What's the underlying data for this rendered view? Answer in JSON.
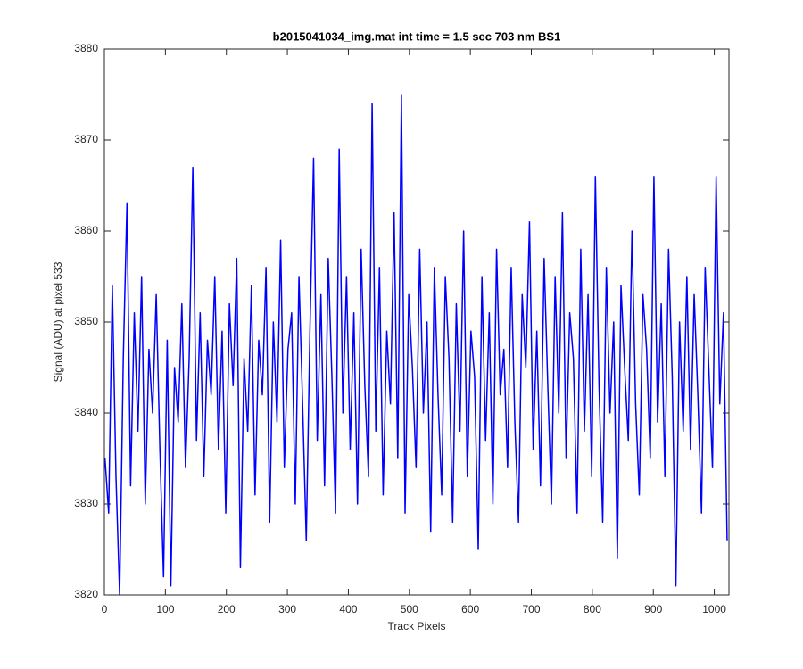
{
  "chart_data": {
    "type": "line",
    "title": "b2015041034_img.mat int time = 1.5 sec  703 nm BS1",
    "x_label": "Track Pixels",
    "y_label": "Signal (ADU) at pixel 533",
    "x": [
      1,
      7,
      13,
      19,
      25,
      31,
      37,
      43,
      49,
      55,
      61,
      67,
      73,
      79,
      85,
      91,
      97,
      103,
      109,
      115,
      121,
      127,
      133,
      139,
      145,
      151,
      157,
      163,
      169,
      175,
      181,
      187,
      193,
      199,
      205,
      211,
      217,
      223,
      229,
      235,
      241,
      247,
      253,
      259,
      265,
      271,
      277,
      283,
      289,
      295,
      301,
      307,
      313,
      319,
      325,
      331,
      337,
      343,
      349,
      355,
      361,
      367,
      373,
      379,
      385,
      391,
      397,
      403,
      409,
      415,
      421,
      427,
      433,
      439,
      445,
      451,
      457,
      463,
      469,
      475,
      481,
      487,
      493,
      499,
      505,
      511,
      517,
      523,
      529,
      535,
      541,
      547,
      553,
      559,
      565,
      571,
      577,
      583,
      589,
      595,
      601,
      607,
      613,
      619,
      625,
      631,
      637,
      643,
      649,
      655,
      661,
      667,
      673,
      679,
      685,
      691,
      697,
      703,
      709,
      715,
      721,
      727,
      733,
      739,
      745,
      751,
      757,
      763,
      769,
      775,
      781,
      787,
      793,
      799,
      805,
      811,
      817,
      823,
      829,
      835,
      841,
      847,
      853,
      859,
      865,
      871,
      877,
      883,
      889,
      895,
      901,
      907,
      913,
      919,
      925,
      931,
      937,
      943,
      949,
      955,
      961,
      967,
      973,
      979,
      985,
      991,
      997,
      1003,
      1009,
      1015,
      1021
    ],
    "series": [
      {
        "color": "#0000ff",
        "values": [
          3835,
          3829,
          3854,
          3833,
          3820,
          3846,
          3863,
          3832,
          3851,
          3838,
          3855,
          3830,
          3847,
          3840,
          3853,
          3836,
          3822,
          3848,
          3821,
          3845,
          3839,
          3852,
          3834,
          3846,
          3867,
          3837,
          3851,
          3833,
          3848,
          3842,
          3855,
          3836,
          3849,
          3829,
          3852,
          3843,
          3857,
          3823,
          3846,
          3838,
          3854,
          3831,
          3848,
          3842,
          3856,
          3828,
          3850,
          3839,
          3859,
          3834,
          3847,
          3851,
          3830,
          3855,
          3841,
          3826,
          3849,
          3868,
          3837,
          3853,
          3832,
          3857,
          3844,
          3829,
          3869,
          3840,
          3855,
          3836,
          3851,
          3830,
          3858,
          3843,
          3833,
          3874,
          3838,
          3856,
          3831,
          3849,
          3841,
          3862,
          3835,
          3875,
          3829,
          3853,
          3845,
          3834,
          3858,
          3840,
          3850,
          3827,
          3856,
          3842,
          3831,
          3855,
          3846,
          3828,
          3852,
          3838,
          3860,
          3833,
          3849,
          3844,
          3825,
          3855,
          3837,
          3851,
          3830,
          3858,
          3842,
          3847,
          3834,
          3856,
          3839,
          3828,
          3853,
          3845,
          3861,
          3836,
          3849,
          3832,
          3857,
          3843,
          3830,
          3855,
          3840,
          3862,
          3835,
          3851,
          3846,
          3829,
          3858,
          3838,
          3853,
          3833,
          3866,
          3843,
          3828,
          3856,
          3840,
          3850,
          3824,
          3854,
          3845,
          3837,
          3860,
          3841,
          3831,
          3853,
          3847,
          3835,
          3866,
          3839,
          3852,
          3833,
          3858,
          3844,
          3821,
          3850,
          3838,
          3855,
          3836,
          3853,
          3842,
          3829,
          3856,
          3845,
          3834,
          3866,
          3841,
          3851,
          3826
        ]
      }
    ],
    "xlim": [
      0,
      1024
    ],
    "xticks": [
      0,
      100,
      200,
      300,
      400,
      500,
      600,
      700,
      800,
      900,
      1000
    ],
    "ylim": [
      3820,
      3880
    ],
    "yticks": [
      3820,
      3830,
      3840,
      3850,
      3860,
      3870,
      3880
    ],
    "grid": false
  }
}
